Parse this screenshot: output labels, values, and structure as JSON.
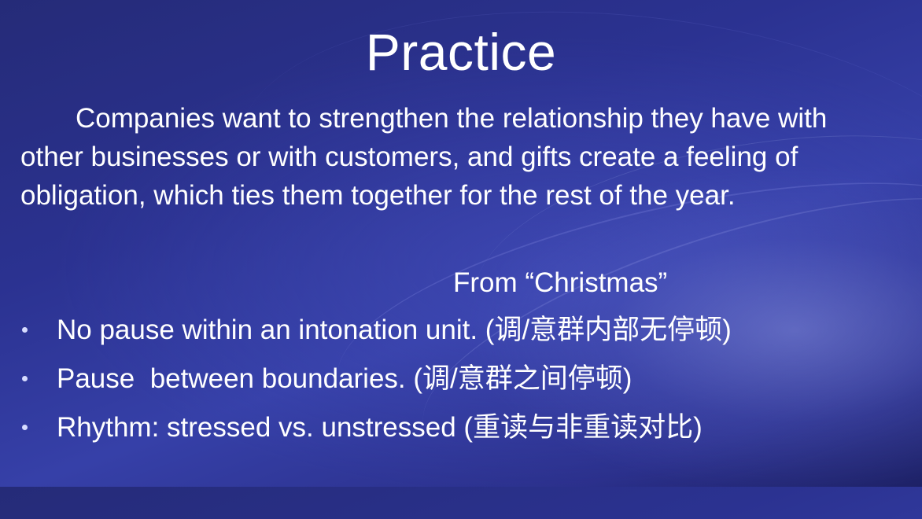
{
  "slide": {
    "title": "Practice",
    "quote": "Companies want to strengthen the relationship they have with other businesses or with customers, and gifts create a feeling of obligation, which ties them together for the rest of the year.",
    "source": "From “Christmas”",
    "bullets": [
      "No pause within an intonation unit. (调/意群内部无停顿)",
      "Pause  between boundaries. (调/意群之间停顿)",
      "Rhythm: stressed vs. unstressed (重读与非重读对比)"
    ]
  },
  "colors": {
    "background": "#2b3291",
    "text": "#ffffff",
    "bullet": "#d7dcff"
  }
}
